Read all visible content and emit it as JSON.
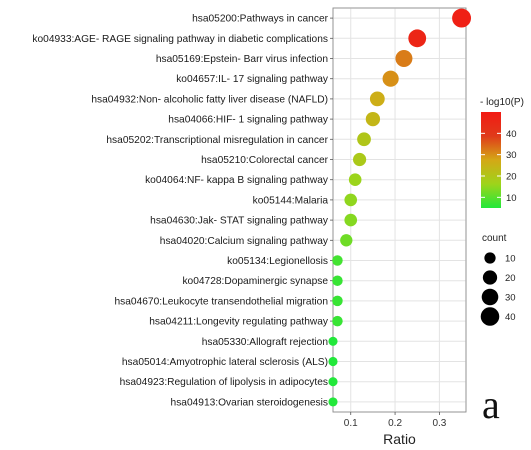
{
  "chart_data": {
    "type": "scatter",
    "xlabel": "Ratio",
    "ylabel": "",
    "xlim": [
      0.06,
      0.36
    ],
    "xticks": [
      0.1,
      0.2,
      0.3
    ],
    "xtick_labels": [
      "0.1",
      "0.2",
      "0.3"
    ],
    "grid": true,
    "points": [
      {
        "label": "hsa05200:Pathways in cancer",
        "ratio": 0.35,
        "neglog10p": 48,
        "count": 42
      },
      {
        "label": "ko04933:AGE- RAGE signaling pathway in diabetic complications",
        "ratio": 0.25,
        "neglog10p": 46,
        "count": 36
      },
      {
        "label": "hsa05169:Epstein- Barr virus infection",
        "ratio": 0.22,
        "neglog10p": 32,
        "count": 32
      },
      {
        "label": "ko04657:IL- 17 signaling pathway",
        "ratio": 0.19,
        "neglog10p": 30,
        "count": 28
      },
      {
        "label": "hsa04932:Non- alcoholic fatty liver disease (NAFLD)",
        "ratio": 0.16,
        "neglog10p": 26,
        "count": 22
      },
      {
        "label": "hsa04066:HIF- 1 signaling pathway",
        "ratio": 0.15,
        "neglog10p": 24,
        "count": 20
      },
      {
        "label": "hsa05202:Transcriptional misregulation in cancer",
        "ratio": 0.13,
        "neglog10p": 20,
        "count": 18
      },
      {
        "label": "hsa05210:Colorectal cancer",
        "ratio": 0.12,
        "neglog10p": 19,
        "count": 16
      },
      {
        "label": "ko04064:NF- kappa B signaling pathway",
        "ratio": 0.11,
        "neglog10p": 16,
        "count": 14
      },
      {
        "label": "ko05144:Malaria",
        "ratio": 0.1,
        "neglog10p": 15,
        "count": 14
      },
      {
        "label": "hsa04630:Jak- STAT signaling pathway",
        "ratio": 0.1,
        "neglog10p": 14,
        "count": 14
      },
      {
        "label": "hsa04020:Calcium signaling pathway",
        "ratio": 0.09,
        "neglog10p": 12,
        "count": 13
      },
      {
        "label": "ko05134:Legionellosis",
        "ratio": 0.07,
        "neglog10p": 8,
        "count": 8
      },
      {
        "label": "ko04728:Dopaminergic synapse",
        "ratio": 0.07,
        "neglog10p": 7,
        "count": 8
      },
      {
        "label": "hsa04670:Leukocyte transendothelial migration",
        "ratio": 0.07,
        "neglog10p": 7,
        "count": 8
      },
      {
        "label": "hsa04211:Longevity regulating pathway",
        "ratio": 0.07,
        "neglog10p": 7,
        "count": 8
      },
      {
        "label": "hsa05330:Allograft rejection",
        "ratio": 0.06,
        "neglog10p": 5,
        "count": 5
      },
      {
        "label": "hsa05014:Amyotrophic lateral sclerosis (ALS)",
        "ratio": 0.06,
        "neglog10p": 5,
        "count": 5
      },
      {
        "label": "hsa04923:Regulation of lipolysis in adipocytes",
        "ratio": 0.06,
        "neglog10p": 5,
        "count": 5
      },
      {
        "label": "hsa04913:Ovarian steroidogenesis",
        "ratio": 0.06,
        "neglog10p": 5,
        "count": 5
      }
    ],
    "color_legend": {
      "title": "- log10(P)",
      "range": [
        5,
        50
      ],
      "ticks": [
        10,
        20,
        30,
        40
      ],
      "colors": [
        "#22e83a",
        "#9ed41a",
        "#d4a816",
        "#e03a1a",
        "#f21a14"
      ],
      "placement": "right"
    },
    "size_legend": {
      "title": "count",
      "values": [
        10,
        20,
        30,
        40
      ],
      "placement": "right"
    }
  },
  "panel_letter": "a"
}
